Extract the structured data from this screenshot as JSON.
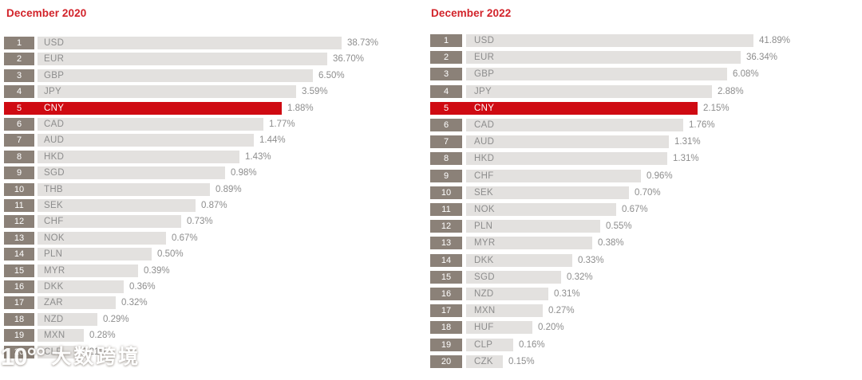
{
  "colors": {
    "title_red": "#d2232a",
    "accent_red": "#cf0a12",
    "rank_box": "#8b8178",
    "bar_gray": "#e3e1df",
    "label_gray": "#8d8d8d"
  },
  "watermark": {
    "logo_text": "10°°",
    "brand_text": "大数跨境"
  },
  "chart_data": [
    {
      "type": "bar",
      "orientation": "horizontal",
      "title": "December 2020",
      "unit": "%",
      "highlight_code": "CNY",
      "bar_length_mode": "rank-stepped (bar lengths decrease by rank, not proportional to values)",
      "rows": [
        {
          "rank": 1,
          "code": "USD",
          "pct": 38.73,
          "label": "38.73%",
          "bar_end": 428,
          "highlight": false
        },
        {
          "rank": 2,
          "code": "EUR",
          "pct": 36.7,
          "label": "36.70%",
          "bar_end": 410,
          "highlight": false
        },
        {
          "rank": 3,
          "code": "GBP",
          "pct": 6.5,
          "label": "6.50%",
          "bar_end": 392,
          "highlight": false
        },
        {
          "rank": 4,
          "code": "JPY",
          "pct": 3.59,
          "label": "3.59%",
          "bar_end": 371,
          "highlight": false
        },
        {
          "rank": 5,
          "code": "CNY",
          "pct": 1.88,
          "label": "1.88%",
          "bar_end": 353,
          "highlight": true
        },
        {
          "rank": 6,
          "code": "CAD",
          "pct": 1.77,
          "label": "1.77%",
          "bar_end": 330,
          "highlight": false
        },
        {
          "rank": 7,
          "code": "AUD",
          "pct": 1.44,
          "label": "1.44%",
          "bar_end": 318,
          "highlight": false
        },
        {
          "rank": 8,
          "code": "HKD",
          "pct": 1.43,
          "label": "1.43%",
          "bar_end": 300,
          "highlight": false
        },
        {
          "rank": 9,
          "code": "SGD",
          "pct": 0.98,
          "label": "0.98%",
          "bar_end": 282,
          "highlight": false
        },
        {
          "rank": 10,
          "code": "THB",
          "pct": 0.89,
          "label": "0.89%",
          "bar_end": 263,
          "highlight": false
        },
        {
          "rank": 11,
          "code": "SEK",
          "pct": 0.87,
          "label": "0.87%",
          "bar_end": 245,
          "highlight": false
        },
        {
          "rank": 12,
          "code": "CHF",
          "pct": 0.73,
          "label": "0.73%",
          "bar_end": 227,
          "highlight": false
        },
        {
          "rank": 13,
          "code": "NOK",
          "pct": 0.67,
          "label": "0.67%",
          "bar_end": 208,
          "highlight": false
        },
        {
          "rank": 14,
          "code": "PLN",
          "pct": 0.5,
          "label": "0.50%",
          "bar_end": 190,
          "highlight": false
        },
        {
          "rank": 15,
          "code": "MYR",
          "pct": 0.39,
          "label": "0.39%",
          "bar_end": 173,
          "highlight": false
        },
        {
          "rank": 16,
          "code": "DKK",
          "pct": 0.36,
          "label": "0.36%",
          "bar_end": 155,
          "highlight": false
        },
        {
          "rank": 17,
          "code": "ZAR",
          "pct": 0.32,
          "label": "0.32%",
          "bar_end": 145,
          "highlight": false
        },
        {
          "rank": 18,
          "code": "NZD",
          "pct": 0.29,
          "label": "0.29%",
          "bar_end": 122,
          "highlight": false
        },
        {
          "rank": 19,
          "code": "MXN",
          "pct": 0.28,
          "label": "0.28%",
          "bar_end": 105,
          "highlight": false
        },
        {
          "rank": 20,
          "code": "CLP",
          "pct": 0.21,
          "label": "0.21%",
          "bar_end": 95,
          "highlight": false
        }
      ]
    },
    {
      "type": "bar",
      "orientation": "horizontal",
      "title": "December 2022",
      "unit": "%",
      "highlight_code": "CNY",
      "bar_length_mode": "rank-stepped (bar lengths decrease by rank, not proportional to values)",
      "rows": [
        {
          "rank": 1,
          "code": "USD",
          "pct": 41.89,
          "label": "41.89%",
          "bar_end": 944,
          "highlight": false
        },
        {
          "rank": 2,
          "code": "EUR",
          "pct": 36.34,
          "label": "36.34%",
          "bar_end": 928,
          "highlight": false
        },
        {
          "rank": 3,
          "code": "GBP",
          "pct": 6.08,
          "label": "6.08%",
          "bar_end": 911,
          "highlight": false
        },
        {
          "rank": 4,
          "code": "JPY",
          "pct": 2.88,
          "label": "2.88%",
          "bar_end": 892,
          "highlight": false
        },
        {
          "rank": 5,
          "code": "CNY",
          "pct": 2.15,
          "label": "2.15%",
          "bar_end": 874,
          "highlight": true
        },
        {
          "rank": 6,
          "code": "CAD",
          "pct": 1.76,
          "label": "1.76%",
          "bar_end": 856,
          "highlight": false
        },
        {
          "rank": 7,
          "code": "AUD",
          "pct": 1.31,
          "label": "1.31%",
          "bar_end": 838,
          "highlight": false
        },
        {
          "rank": 8,
          "code": "HKD",
          "pct": 1.31,
          "label": "1.31%",
          "bar_end": 836,
          "highlight": false
        },
        {
          "rank": 9,
          "code": "CHF",
          "pct": 0.96,
          "label": "0.96%",
          "bar_end": 803,
          "highlight": false
        },
        {
          "rank": 10,
          "code": "SEK",
          "pct": 0.7,
          "label": "0.70%",
          "bar_end": 788,
          "highlight": false
        },
        {
          "rank": 11,
          "code": "NOK",
          "pct": 0.67,
          "label": "0.67%",
          "bar_end": 772,
          "highlight": false
        },
        {
          "rank": 12,
          "code": "PLN",
          "pct": 0.55,
          "label": "0.55%",
          "bar_end": 752,
          "highlight": false
        },
        {
          "rank": 13,
          "code": "MYR",
          "pct": 0.38,
          "label": "0.38%",
          "bar_end": 742,
          "highlight": false
        },
        {
          "rank": 14,
          "code": "DKK",
          "pct": 0.33,
          "label": "0.33%",
          "bar_end": 717,
          "highlight": false
        },
        {
          "rank": 15,
          "code": "SGD",
          "pct": 0.32,
          "label": "0.32%",
          "bar_end": 703,
          "highlight": false
        },
        {
          "rank": 16,
          "code": "NZD",
          "pct": 0.31,
          "label": "0.31%",
          "bar_end": 687,
          "highlight": false
        },
        {
          "rank": 17,
          "code": "MXN",
          "pct": 0.27,
          "label": "0.27%",
          "bar_end": 680,
          "highlight": false
        },
        {
          "rank": 18,
          "code": "HUF",
          "pct": 0.2,
          "label": "0.20%",
          "bar_end": 667,
          "highlight": false
        },
        {
          "rank": 19,
          "code": "CLP",
          "pct": 0.16,
          "label": "0.16%",
          "bar_end": 643,
          "highlight": false
        },
        {
          "rank": 20,
          "code": "CZK",
          "pct": 0.15,
          "label": "0.15%",
          "bar_end": 630,
          "highlight": false
        }
      ]
    }
  ]
}
